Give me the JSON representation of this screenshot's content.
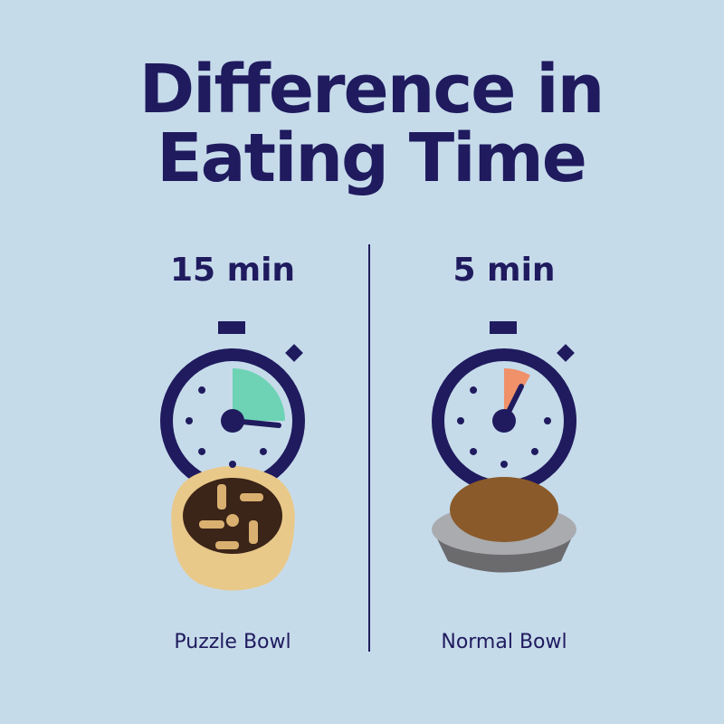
{
  "header": {
    "title_lines": [
      "Difference in",
      "Eating Time"
    ]
  },
  "panels": [
    {
      "time": "15 min",
      "label": "Puzzle Bowl"
    },
    {
      "time": "5 min",
      "label": "Normal Bowl"
    }
  ]
}
